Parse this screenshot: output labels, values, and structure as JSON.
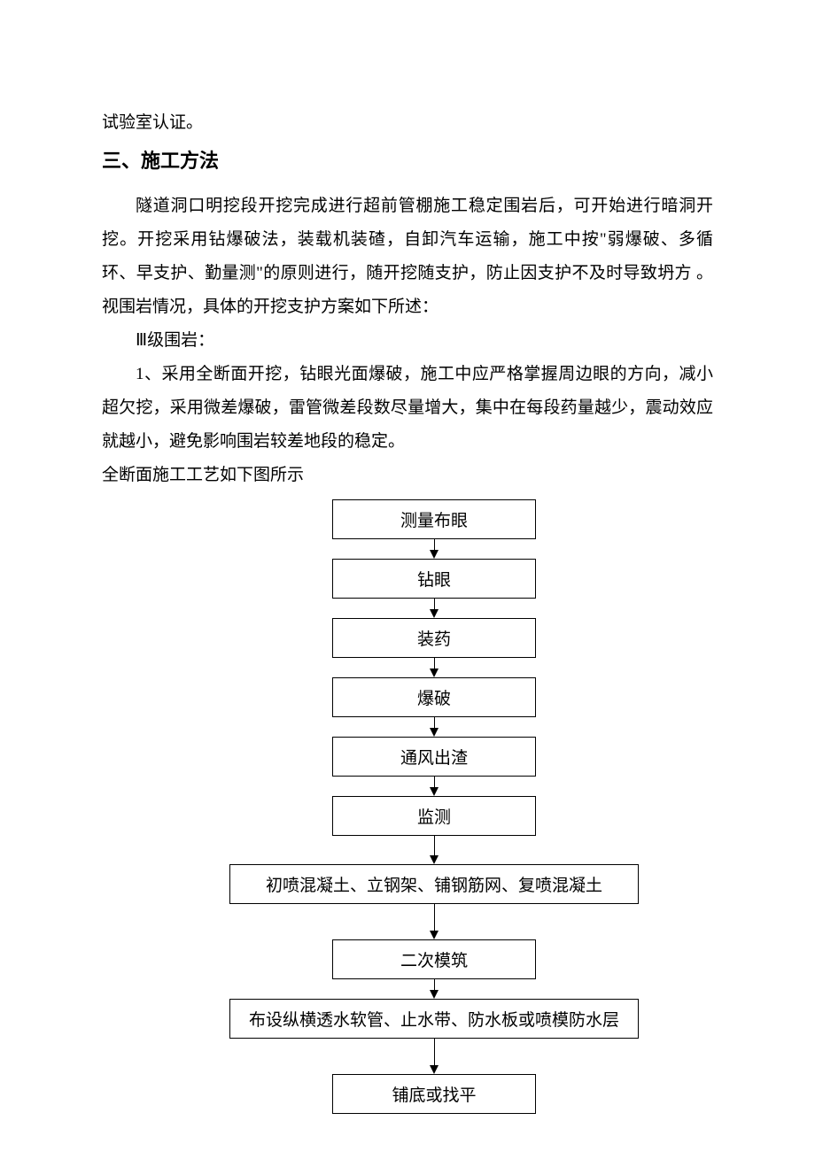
{
  "continuation": "试验室认证。",
  "heading": "三、施工方法",
  "para1": "隧道洞口明挖段开挖完成进行超前管棚施工稳定围岩后，可开始进行暗洞开挖。开挖采用钻爆破法，装载机装碴，自卸汽车运输，施工中按\"弱爆破、多循环、早支护、勤量测\"的原则进行，随开挖随支护，防止因支护不及时导致坍方 。视围岩情况，具体的开挖支护方案如下所述：",
  "para2": "Ⅲ级围岩：",
  "para3": "1、采用全断面开挖，钻眼光面爆破，施工中应严格掌握周边眼的方向，减小超欠挖，采用微差爆破，雷管微差段数尽量增大，集中在每段药量越少，震动效应就越小，避免影响围岩较差地段的稳定。",
  "para4": "全断面施工工艺如下图所示",
  "flowchart": {
    "type": "flowchart",
    "background_color": "#ffffff",
    "border_color": "#000000",
    "text_color": "#000000",
    "box_fontsize": 19,
    "nodes": [
      {
        "id": "n1",
        "label": "测量布眼",
        "size": "small",
        "arrow_height": 12
      },
      {
        "id": "n2",
        "label": "钻眼",
        "size": "small",
        "arrow_height": 12
      },
      {
        "id": "n3",
        "label": "装药",
        "size": "small",
        "arrow_height": 12
      },
      {
        "id": "n4",
        "label": "爆破",
        "size": "small",
        "arrow_height": 12
      },
      {
        "id": "n5",
        "label": "通风出渣",
        "size": "small",
        "arrow_height": 12
      },
      {
        "id": "n6",
        "label": "监测",
        "size": "small",
        "arrow_height": 22
      },
      {
        "id": "n7",
        "label": "初喷混凝土、立钢架、铺钢筋网、复喷混凝土",
        "size": "large",
        "arrow_height": 30
      },
      {
        "id": "n8",
        "label": "二次模筑",
        "size": "small",
        "arrow_height": 12
      },
      {
        "id": "n9",
        "label": "布设纵横透水软管、止水带、防水板或喷模防水层",
        "size": "large",
        "arrow_height": 30
      },
      {
        "id": "n10",
        "label": "铺底或找平",
        "size": "small",
        "arrow_height": 0
      }
    ]
  }
}
